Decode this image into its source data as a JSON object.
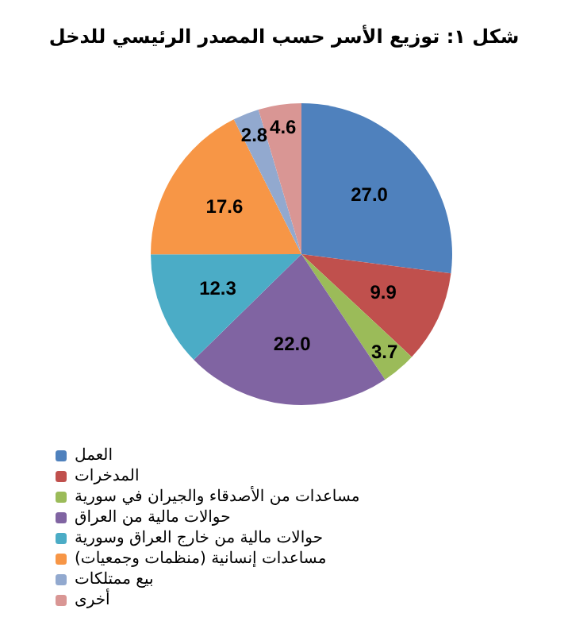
{
  "chart_data": {
    "type": "pie",
    "title": "شكل ١: توزيع الأسر حسب المصدر الرئيسي للدخل",
    "categories": [
      "العمل",
      "المدخرات",
      "مساعدات من الأصدقاء والجيران في سورية",
      "حوالات مالية من العراق",
      "حوالات مالية من خارج العراق وسورية",
      "مساعدات إنسانية (منظمات وجمعيات)",
      "بيع ممتلكات",
      "أخرى"
    ],
    "values": [
      27.0,
      9.9,
      3.7,
      22.0,
      12.3,
      17.6,
      2.8,
      4.6
    ],
    "colors": [
      "#4f81bd",
      "#c0504d",
      "#9bbb59",
      "#8064a2",
      "#4bacc6",
      "#f79646",
      "#92a9cf",
      "#d99694"
    ],
    "value_labels": [
      "27.0",
      "9.9",
      "3.7",
      "22.0",
      "12.3",
      "17.6",
      "2.8",
      "4.6"
    ],
    "legend": "bottom left"
  }
}
